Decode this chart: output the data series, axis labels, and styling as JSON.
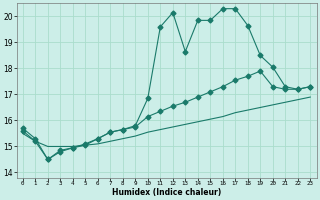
{
  "xlabel": "Humidex (Indice chaleur)",
  "xlim": [
    -0.5,
    23.5
  ],
  "ylim": [
    13.8,
    20.5
  ],
  "yticks": [
    14,
    15,
    16,
    17,
    18,
    19,
    20
  ],
  "xticks": [
    0,
    1,
    2,
    3,
    4,
    5,
    6,
    7,
    8,
    9,
    10,
    11,
    12,
    13,
    14,
    15,
    16,
    17,
    18,
    19,
    20,
    21,
    22,
    23
  ],
  "background_color": "#cceee8",
  "grid_color": "#aaddcc",
  "line_color": "#1a7a6a",
  "line1_y": [
    15.7,
    15.3,
    14.5,
    14.8,
    14.95,
    15.1,
    15.3,
    15.55,
    15.65,
    15.8,
    16.85,
    19.6,
    20.15,
    18.65,
    19.85,
    19.85,
    20.3,
    20.3,
    19.65,
    18.5,
    18.05,
    17.3,
    17.2,
    17.3
  ],
  "line2_y": [
    15.6,
    15.2,
    14.5,
    14.85,
    14.95,
    15.05,
    15.3,
    15.55,
    15.65,
    15.75,
    16.15,
    16.35,
    16.55,
    16.7,
    16.9,
    17.1,
    17.3,
    17.55,
    17.7,
    17.9,
    17.3,
    17.2,
    17.2,
    17.3
  ],
  "line3_y": [
    15.5,
    15.2,
    15.0,
    15.0,
    15.0,
    15.05,
    15.1,
    15.2,
    15.3,
    15.4,
    15.55,
    15.65,
    15.75,
    15.85,
    15.95,
    16.05,
    16.15,
    16.3,
    16.4,
    16.5,
    16.6,
    16.7,
    16.8,
    16.9
  ],
  "markersize": 2.5,
  "linewidth": 0.8
}
